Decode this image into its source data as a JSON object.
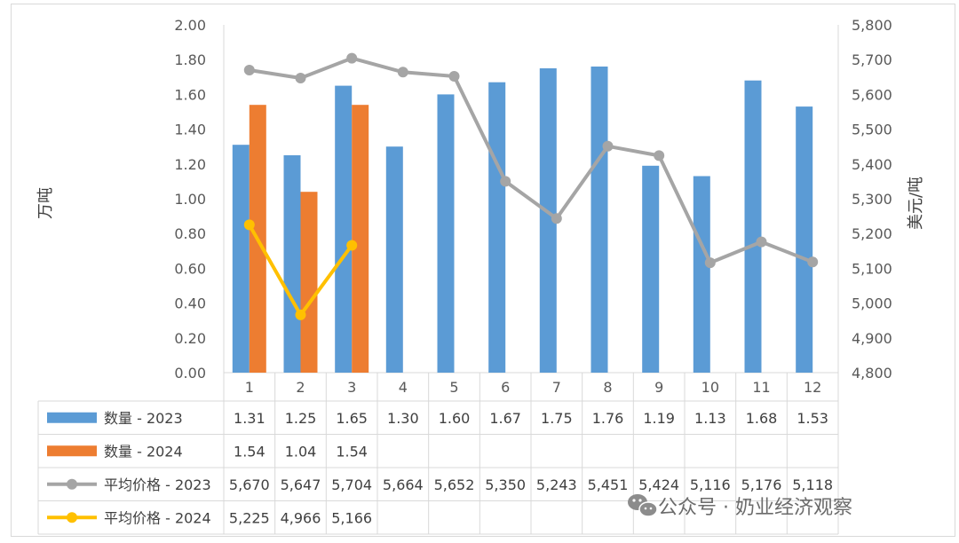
{
  "chart_data": {
    "type": "bar+line",
    "categories": [
      "1",
      "2",
      "3",
      "4",
      "5",
      "6",
      "7",
      "8",
      "9",
      "10",
      "11",
      "12"
    ],
    "y_left": {
      "label": "万吨",
      "min": 0,
      "max": 2,
      "ticks": [
        "0.00",
        "0.20",
        "0.40",
        "0.60",
        "0.80",
        "1.00",
        "1.20",
        "1.40",
        "1.60",
        "1.80",
        "2.00"
      ]
    },
    "y_right": {
      "label": "美元/吨",
      "min": 4800,
      "max": 5800,
      "ticks": [
        "4,800",
        "4,900",
        "5,000",
        "5,100",
        "5,200",
        "5,300",
        "5,400",
        "5,500",
        "5,600",
        "5,700",
        "5,800"
      ]
    },
    "series": [
      {
        "name": "数量 - 2023",
        "kind": "bar",
        "axis": "left",
        "color": "#5b9bd5",
        "values": [
          1.31,
          1.25,
          1.65,
          1.3,
          1.6,
          1.67,
          1.75,
          1.76,
          1.19,
          1.13,
          1.68,
          1.53
        ],
        "labels": [
          "1.31",
          "1.25",
          "1.65",
          "1.30",
          "1.60",
          "1.67",
          "1.75",
          "1.76",
          "1.19",
          "1.13",
          "1.68",
          "1.53"
        ]
      },
      {
        "name": "数量 - 2024",
        "kind": "bar",
        "axis": "left",
        "color": "#ed7d31",
        "values": [
          1.54,
          1.04,
          1.54,
          null,
          null,
          null,
          null,
          null,
          null,
          null,
          null,
          null
        ],
        "labels": [
          "1.54",
          "1.04",
          "1.54",
          "",
          "",
          "",
          "",
          "",
          "",
          "",
          "",
          ""
        ]
      },
      {
        "name": "平均价格 - 2023",
        "kind": "line",
        "axis": "right",
        "color": "#a5a5a5",
        "values": [
          5670,
          5647,
          5704,
          5664,
          5652,
          5350,
          5243,
          5451,
          5424,
          5116,
          5176,
          5118
        ],
        "labels": [
          "5,670",
          "5,647",
          "5,704",
          "5,664",
          "5,652",
          "5,350",
          "5,243",
          "5,451",
          "5,424",
          "5,116",
          "5,176",
          "5,118"
        ]
      },
      {
        "name": "平均价格 - 2024",
        "kind": "line",
        "axis": "right",
        "color": "#ffc000",
        "values": [
          5225,
          4966,
          5166,
          null,
          null,
          null,
          null,
          null,
          null,
          null,
          null,
          null
        ],
        "labels": [
          "5,225",
          "4,966",
          "5,166",
          "",
          "",
          "",
          "",
          "",
          "",
          "",
          "",
          ""
        ]
      }
    ]
  },
  "watermark": "公众号 · 奶业经济观察"
}
